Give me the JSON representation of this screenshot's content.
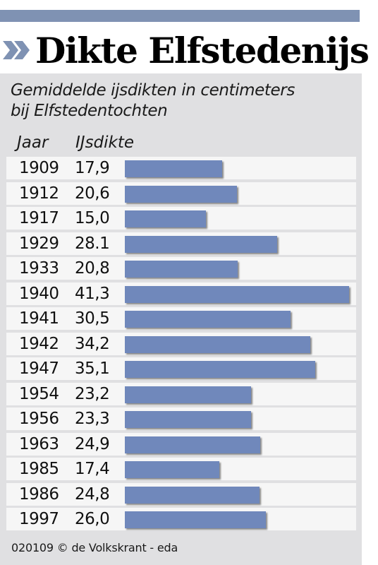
{
  "title": "Dikte Elfstedenijs",
  "subtitle_line1": "Gemiddelde ijsdikten in centimeters",
  "subtitle_line2": "bij Elfstedentochten",
  "column_headers": {
    "year": "Jaar",
    "value": "IJsdikte"
  },
  "footer": "020109 © de Volkskrant - eda",
  "colors": {
    "bar": "#7088bb",
    "accent": "#7f92b3",
    "panel": "#e0e0e2",
    "row": "#f6f6f6"
  },
  "chart_data": {
    "type": "bar",
    "orientation": "horizontal",
    "title": "Dikte Elfstedenijs",
    "subtitle": "Gemiddelde ijsdikten in centimeters bij Elfstedentochten",
    "xlabel": "IJsdikte",
    "ylabel": "Jaar",
    "categories": [
      "1909",
      "1912",
      "1917",
      "1929",
      "1933",
      "1940",
      "1941",
      "1942",
      "1947",
      "1954",
      "1956",
      "1963",
      "1985",
      "1986",
      "1997"
    ],
    "labels": [
      "17,9",
      "20,6",
      "15,0",
      "28.1",
      "20,8",
      "41,3",
      "30,5",
      "34,2",
      "35,1",
      "23,2",
      "23,3",
      "24,9",
      "17,4",
      "24,8",
      "26,0"
    ],
    "values": [
      17.9,
      20.6,
      15.0,
      28.1,
      20.8,
      41.3,
      30.5,
      34.2,
      35.1,
      23.2,
      23.3,
      24.9,
      17.4,
      24.8,
      26.0
    ],
    "xlim": [
      0,
      41.3
    ],
    "grid": false
  }
}
